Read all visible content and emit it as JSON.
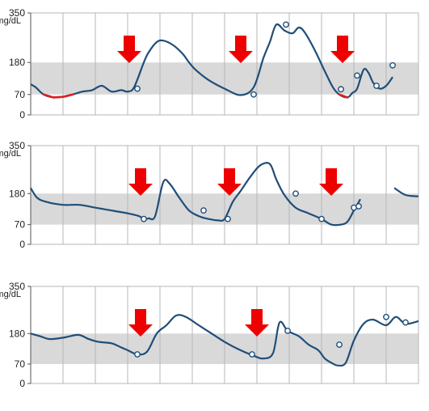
{
  "colors": {
    "target_band": "#d9d9d9",
    "grid": "#b7b7b7",
    "axis": "#555555",
    "line": "#1f4e79",
    "low_segment": "#e02020",
    "marker_fill": "#ffffff",
    "arrow": "#ee0000"
  },
  "chart_data": [
    {
      "type": "line",
      "unit": "mg/dL",
      "y_ticks": [
        0,
        70,
        180,
        350
      ],
      "ylim": [
        0,
        350
      ],
      "target_range": [
        70,
        180
      ],
      "x_divisions": 12,
      "low_threshold": 70,
      "series": [
        {
          "x": [
            0,
            0.15,
            0.4,
            0.7,
            1.0,
            1.3,
            1.6,
            1.9,
            2.2,
            2.5,
            2.8,
            3.0,
            3.2,
            3.5,
            3.65,
            3.9,
            4.1,
            4.4,
            4.7,
            4.9,
            5.1,
            5.5,
            6.0,
            6.5,
            6.9,
            7.2,
            7.4,
            7.6,
            7.85,
            8.1,
            8.3,
            8.5,
            8.8,
            9.1,
            9.35,
            9.55,
            9.8,
            9.95,
            10.1,
            10.3,
            10.45,
            10.6,
            10.8,
            11.0,
            11.2
          ]
        }
      ],
      "arrows_x": [
        3.05,
        6.5,
        9.65
      ]
    },
    {
      "type": "line",
      "unit": "mg/dL",
      "y_ticks": [
        0,
        70,
        180,
        350
      ],
      "ylim": [
        0,
        350
      ],
      "target_range": [
        70,
        180
      ],
      "x_divisions": 12
    },
    {
      "type": "line",
      "unit": "mg/dL",
      "y_ticks": [
        0,
        70,
        180,
        350
      ],
      "ylim": [
        0,
        350
      ],
      "target_range": [
        70,
        180
      ],
      "x_divisions": 12
    }
  ]
}
